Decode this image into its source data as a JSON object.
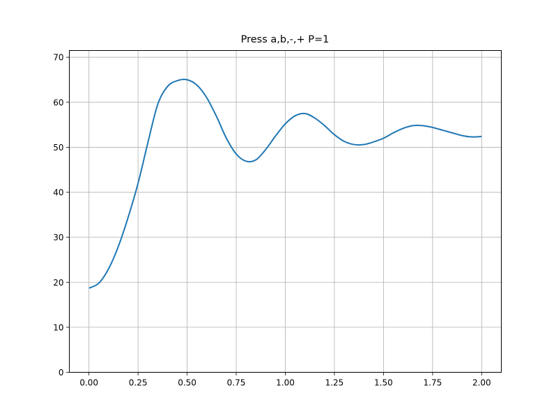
{
  "chart_data": {
    "type": "line",
    "title": "Press a,b,-,+ P=1",
    "xlabel": "",
    "ylabel": "",
    "xlim": [
      -0.1,
      2.1
    ],
    "ylim": [
      0,
      71.5
    ],
    "grid": true,
    "x_ticks": [
      0.0,
      0.25,
      0.5,
      0.75,
      1.0,
      1.25,
      1.5,
      1.75,
      2.0
    ],
    "x_tick_labels": [
      "0.00",
      "0.25",
      "0.50",
      "0.75",
      "1.00",
      "1.25",
      "1.50",
      "1.75",
      "2.00"
    ],
    "y_ticks": [
      0,
      10,
      20,
      30,
      40,
      50,
      60,
      70
    ],
    "y_tick_labels": [
      "0",
      "10",
      "20",
      "30",
      "40",
      "50",
      "60",
      "70"
    ],
    "series": [
      {
        "color": "#1f77b4",
        "x": [
          0.0,
          0.05,
          0.1,
          0.15,
          0.2,
          0.25,
          0.3,
          0.35,
          0.4,
          0.45,
          0.5,
          0.55,
          0.6,
          0.65,
          0.7,
          0.75,
          0.8,
          0.85,
          0.9,
          0.95,
          1.0,
          1.05,
          1.1,
          1.15,
          1.2,
          1.25,
          1.3,
          1.35,
          1.4,
          1.45,
          1.5,
          1.55,
          1.6,
          1.65,
          1.7,
          1.75,
          1.8,
          1.85,
          1.9,
          1.95,
          2.0
        ],
        "values": [
          18.7,
          19.8,
          23.0,
          28.0,
          34.5,
          42.0,
          51.0,
          59.5,
          63.5,
          64.8,
          65.0,
          63.8,
          61.0,
          56.8,
          52.0,
          48.5,
          46.9,
          47.2,
          49.5,
          52.5,
          55.2,
          57.0,
          57.5,
          56.5,
          54.8,
          52.8,
          51.3,
          50.6,
          50.6,
          51.2,
          52.0,
          53.2,
          54.2,
          54.8,
          54.8,
          54.4,
          53.8,
          53.2,
          52.6,
          52.3,
          52.4
        ]
      }
    ]
  }
}
